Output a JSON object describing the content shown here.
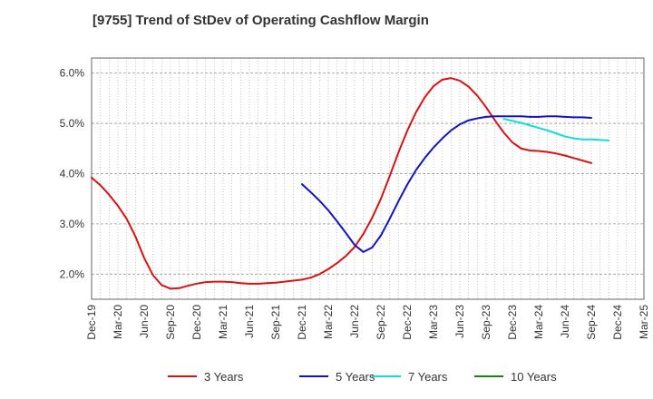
{
  "chart_data": {
    "type": "line",
    "title": "[9755]  Trend of StDev of Operating Cashflow Margin",
    "xlabel": "",
    "ylabel": "",
    "x_tick_labels": [
      "Dec-19",
      "Mar-20",
      "Jun-20",
      "Sep-20",
      "Dec-20",
      "Mar-21",
      "Jun-21",
      "Sep-21",
      "Dec-21",
      "Mar-22",
      "Jun-22",
      "Sep-22",
      "Dec-22",
      "Mar-23",
      "Jun-23",
      "Sep-23",
      "Dec-23",
      "Mar-24",
      "Jun-24",
      "Sep-24",
      "Dec-24",
      "Mar-25"
    ],
    "y_tick_labels": [
      "2.0%",
      "3.0%",
      "4.0%",
      "5.0%",
      "6.0%"
    ],
    "y_ticks": [
      2.0,
      3.0,
      4.0,
      5.0,
      6.0
    ],
    "ylim": [
      1.5,
      6.3
    ],
    "grid": true,
    "legend_position": "bottom",
    "series": [
      {
        "name": "3 Years",
        "color": "#dd1111",
        "start_index": 0,
        "values": [
          3.92,
          3.77,
          3.58,
          3.36,
          3.1,
          2.75,
          2.32,
          1.98,
          1.78,
          1.71,
          1.72,
          1.77,
          1.81,
          1.84,
          1.85,
          1.85,
          1.84,
          1.82,
          1.81,
          1.81,
          1.82,
          1.83,
          1.85,
          1.87,
          1.89,
          1.93,
          2.0,
          2.1,
          2.22,
          2.36,
          2.54,
          2.8,
          3.12,
          3.5,
          3.95,
          4.42,
          4.85,
          5.22,
          5.52,
          5.74,
          5.87,
          5.9,
          5.85,
          5.73,
          5.55,
          5.32,
          5.06,
          4.82,
          4.62,
          4.5,
          4.46,
          4.45,
          4.43,
          4.4,
          4.36,
          4.31,
          4.26,
          4.21
        ]
      },
      {
        "name": "5 Years",
        "color": "#1111cc",
        "start_index": 24,
        "values": [
          3.79,
          3.63,
          3.46,
          3.27,
          3.05,
          2.82,
          2.58,
          2.44,
          2.53,
          2.77,
          3.1,
          3.45,
          3.78,
          4.07,
          4.31,
          4.52,
          4.7,
          4.86,
          4.98,
          5.06,
          5.1,
          5.13,
          5.14,
          5.14,
          5.14,
          5.14,
          5.13,
          5.13,
          5.14,
          5.14,
          5.13,
          5.12,
          5.12,
          5.11
        ]
      },
      {
        "name": "7 Years",
        "color": "#11dddd",
        "start_index": 47,
        "values": [
          5.09,
          5.05,
          5.01,
          4.96,
          4.91,
          4.86,
          4.8,
          4.74,
          4.7,
          4.68,
          4.68,
          4.67,
          4.66
        ]
      },
      {
        "name": "10 Years",
        "color": "#118811",
        "start_index": null,
        "values": []
      }
    ]
  }
}
